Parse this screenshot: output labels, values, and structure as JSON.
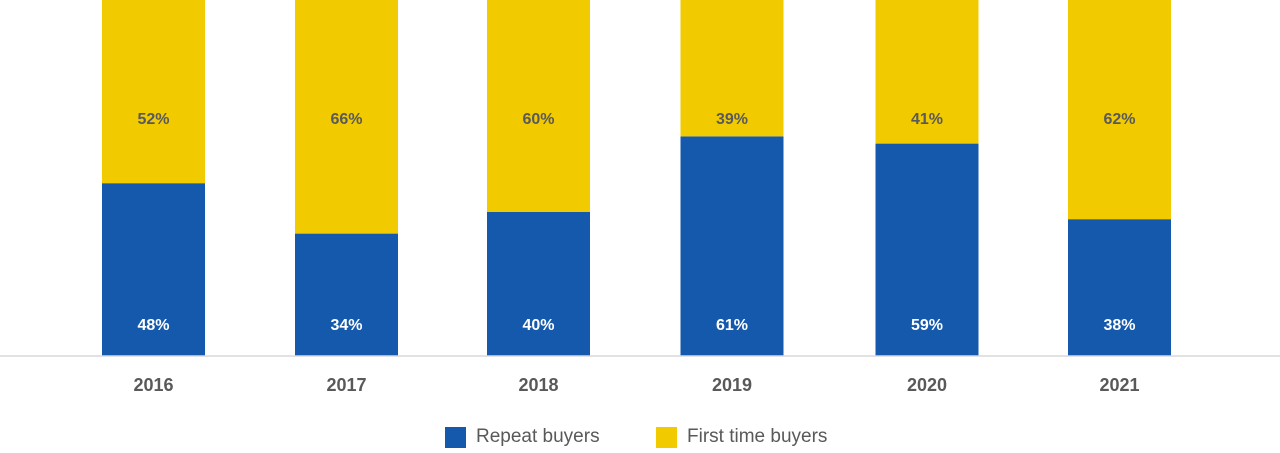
{
  "chart_data": {
    "type": "bar",
    "stacked": true,
    "categories": [
      "2016",
      "2017",
      "2018",
      "2019",
      "2020",
      "2021"
    ],
    "series": [
      {
        "name": "Repeat buyers",
        "values": [
          48,
          34,
          40,
          61,
          59,
          38
        ],
        "labels": [
          "48%",
          "34%",
          "40%",
          "61%",
          "59%",
          "38%"
        ],
        "color": "#1559ac"
      },
      {
        "name": "First time buyers",
        "values": [
          52,
          66,
          60,
          39,
          41,
          62
        ],
        "labels": [
          "52%",
          "66%",
          "60%",
          "39%",
          "41%",
          "62%"
        ],
        "color": "#f1cb00"
      }
    ],
    "unit": "%",
    "ylim": [
      0,
      100
    ],
    "grid": false,
    "legend_position": "bottom"
  },
  "colors": {
    "axis_line": "#d9d9d9",
    "tick_label": "#595959",
    "label_on_repeat": "#ffffff",
    "label_on_first_time": "#595959"
  }
}
